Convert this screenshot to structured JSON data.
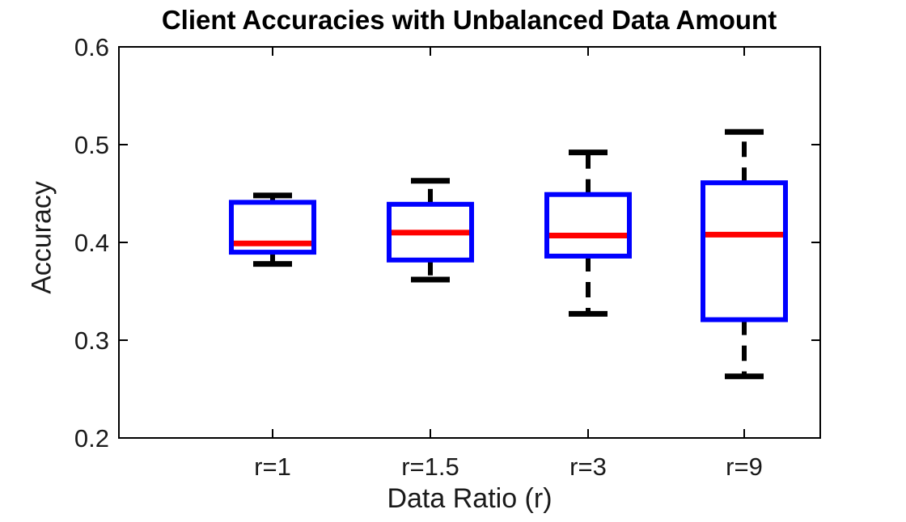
{
  "chart_data": {
    "type": "boxplot",
    "title": "Client Accuracies with Unbalanced Data Amount",
    "xlabel": "Data Ratio (r)",
    "ylabel": "Accuracy",
    "categories": [
      "r=1",
      "r=1.5",
      "r=3",
      "r=9"
    ],
    "ylim": [
      0.2,
      0.6
    ],
    "yticks": [
      0.2,
      0.3,
      0.4,
      0.5,
      0.6
    ],
    "ytick_labels": [
      "0.2",
      "0.3",
      "0.4",
      "0.5",
      "0.6"
    ],
    "grid": false,
    "legend": "none",
    "boxes": [
      {
        "category": "r=1",
        "whisker_low": 0.378,
        "q1": 0.39,
        "median": 0.399,
        "q3": 0.441,
        "whisker_high": 0.448
      },
      {
        "category": "r=1.5",
        "whisker_low": 0.362,
        "q1": 0.382,
        "median": 0.41,
        "q3": 0.439,
        "whisker_high": 0.463
      },
      {
        "category": "r=3",
        "whisker_low": 0.327,
        "q1": 0.386,
        "median": 0.407,
        "q3": 0.449,
        "whisker_high": 0.492
      },
      {
        "category": "r=9",
        "whisker_low": 0.263,
        "q1": 0.321,
        "median": 0.408,
        "q3": 0.461,
        "whisker_high": 0.513
      }
    ],
    "colors": {
      "box": "#0000ff",
      "median": "#ff0000",
      "whisker": "#000000",
      "cap": "#000000",
      "axis": "#000000",
      "background": "#ffffff"
    }
  }
}
